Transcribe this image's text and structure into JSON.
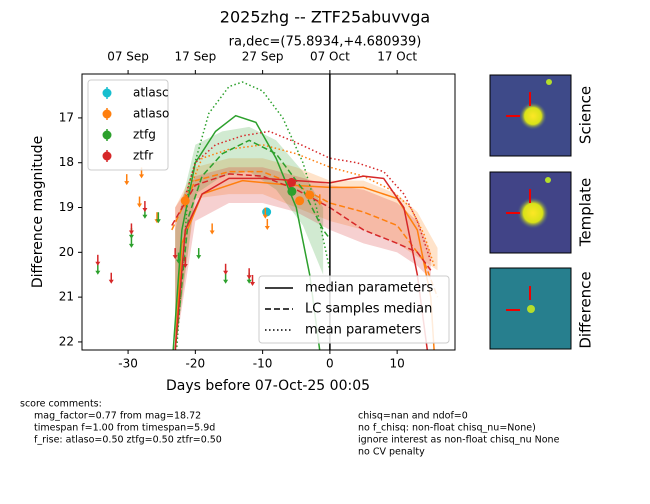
{
  "chart_data": {
    "type": "lightcurve",
    "title": "2025zhg -- ZTF25abuvvga",
    "subtitle": "ra,dec=(75.8934,+4.680939)",
    "xlabel": "Days before 07-Oct-25 00:05",
    "ylabel": "Difference magnitude",
    "xlim": [
      -36.85,
      18.6
    ],
    "ylim": [
      22.18,
      16.02
    ],
    "xticks": [
      -30,
      -20,
      -10,
      0,
      10
    ],
    "yticks": [
      17,
      18,
      19,
      20,
      21,
      22
    ],
    "x2ticks": [
      {
        "value": -30,
        "label": "07 Sep"
      },
      {
        "value": -20,
        "label": "17 Sep"
      },
      {
        "value": -10,
        "label": "27 Sep"
      },
      {
        "value": 0,
        "label": "07 Oct"
      },
      {
        "value": 10,
        "label": "17 Oct"
      }
    ],
    "vline": 0,
    "fit_legend": [
      "median parameters",
      "LC samples median",
      "mean parameters"
    ],
    "fit_dashes": [
      "solid",
      "dashed",
      "dotted"
    ],
    "series": [
      {
        "name": "atlasc",
        "color": "#17becf",
        "x": [
          -9.4
        ],
        "values": [
          19.1
        ],
        "errors": [
          0.1
        ],
        "limits_x": [],
        "limits_values": []
      },
      {
        "name": "atlaso",
        "color": "#ff7f0e",
        "x": [
          -21.5,
          -4.5,
          -3
        ],
        "values": [
          18.85,
          18.85,
          18.72
        ],
        "errors": [
          0.15,
          0.08,
          0.08
        ],
        "limits_x": [
          -30.2,
          -28,
          -28.3,
          -25.7,
          -17.5,
          -9.6,
          -9.3,
          -1.5
        ],
        "limits_values": [
          18.3,
          18.15,
          18.8,
          19.15,
          19.4,
          19.05,
          19.3,
          18.75
        ],
        "band": {
          "x": [
            -23,
            -20,
            -15,
            -10,
            -5,
            0,
            5,
            10,
            13,
            16
          ],
          "low": [
            19.0,
            18.1,
            17.9,
            17.9,
            18.1,
            18.4,
            18.4,
            18.7,
            19.1,
            19.9
          ],
          "high": [
            22.2,
            18.8,
            18.7,
            18.7,
            19.0,
            19.3,
            19.5,
            19.8,
            20.1,
            20.4
          ]
        },
        "fits": [
          {
            "x": [
              -23,
              -22,
              -19,
              -13,
              -6,
              0,
              5,
              10,
              13,
              15,
              15.5
            ],
            "values": [
              22.2,
              19.8,
              18.7,
              18.4,
              18.5,
              18.55,
              18.55,
              18.8,
              19.5,
              21.0,
              22.2
            ]
          },
          {
            "x": [
              -23.5,
              -20,
              -15,
              -10,
              -5,
              0,
              5,
              10,
              14,
              16
            ],
            "values": [
              19.5,
              18.4,
              18.2,
              18.2,
              18.5,
              18.9,
              19.1,
              19.4,
              20.2,
              21.0
            ]
          },
          {
            "x": [
              -22,
              -19,
              -15,
              -10,
              -5,
              0,
              5,
              9,
              12,
              14,
              15.5
            ],
            "values": [
              19.0,
              17.9,
              17.7,
              17.6,
              17.8,
              18.1,
              18.3,
              18.6,
              19.0,
              19.6,
              20.3
            ]
          }
        ]
      },
      {
        "name": "ztfg",
        "color": "#2ca02c",
        "x": [
          -5.65
        ],
        "values": [
          18.64
        ],
        "errors": [
          0.06
        ],
        "limits_x": [
          -34.5,
          -29.5,
          -29.5,
          -27.5,
          -25.5,
          -22.5,
          -19.5,
          -15.5,
          -12
        ],
        "limits_values": [
          20.3,
          19.5,
          19.7,
          19.05,
          19.15,
          20.05,
          19.95,
          20.5,
          20.5
        ],
        "band": {
          "x": [
            -23,
            -20,
            -16,
            -12,
            -8,
            -4,
            -1
          ],
          "low": [
            19.5,
            17.6,
            17.3,
            17.2,
            17.5,
            18.2,
            19.0
          ],
          "high": [
            22.2,
            18.7,
            18.3,
            18.2,
            18.6,
            19.4,
            20.5
          ]
        },
        "fits": [
          {
            "x": [
              -23.3,
              -22,
              -20,
              -17,
              -14,
              -11,
              -8,
              -5,
              -3,
              -1.5
            ],
            "values": [
              22.2,
              19.5,
              18.0,
              17.3,
              16.95,
              17.1,
              17.9,
              19.0,
              20.5,
              22.2
            ]
          },
          {
            "x": [
              -23,
              -21,
              -19,
              -16,
              -12,
              -8,
              -4,
              -1,
              0
            ],
            "values": [
              22.2,
              19.2,
              18.3,
              17.8,
              17.5,
              17.8,
              18.6,
              19.5,
              19.7
            ]
          },
          {
            "x": [
              -22.8,
              -21,
              -18,
              -15,
              -13,
              -10,
              -7,
              -4,
              -2,
              0
            ],
            "values": [
              22.2,
              18.5,
              16.9,
              16.3,
              16.2,
              16.4,
              17.0,
              18.0,
              19.0,
              20.4
            ]
          }
        ]
      },
      {
        "name": "ztfr",
        "color": "#d62728",
        "x": [
          -5.7
        ],
        "values": [
          18.44
        ],
        "errors": [
          0.05
        ],
        "limits_x": [
          -34.5,
          -32.5,
          -29.5,
          -27.5,
          -23,
          -21.5,
          -15.5,
          -12,
          -11.5
        ],
        "limits_values": [
          20.1,
          20.5,
          19.4,
          18.9,
          19.95,
          20.15,
          20.3,
          20.4,
          20.55
        ],
        "band": {
          "x": [
            -23,
            -20,
            -15,
            -10,
            -5,
            0,
            5,
            10,
            13,
            15
          ],
          "low": [
            19.0,
            18.3,
            18.1,
            18.1,
            18.3,
            18.5,
            18.6,
            18.9,
            19.3,
            20.0
          ],
          "high": [
            22.2,
            19.3,
            18.9,
            18.9,
            19.1,
            19.5,
            19.8,
            20.0,
            20.3,
            20.6
          ]
        },
        "fits": [
          {
            "x": [
              -23,
              -21.5,
              -19,
              -15,
              -10,
              -5,
              0,
              5,
              8,
              11,
              13,
              14.5
            ],
            "values": [
              22.2,
              19.5,
              18.7,
              18.35,
              18.35,
              18.4,
              18.45,
              18.3,
              18.35,
              19.0,
              20.5,
              22.2
            ]
          },
          {
            "x": [
              -23.5,
              -20,
              -15,
              -10,
              -5,
              0,
              5,
              10,
              13,
              15
            ],
            "values": [
              19.4,
              18.5,
              18.25,
              18.3,
              18.6,
              19.0,
              19.5,
              19.8,
              20.0,
              20.4
            ]
          },
          {
            "x": [
              -22,
              -20,
              -17,
              -13,
              -9,
              -5,
              0,
              4,
              8,
              11,
              13,
              15
            ],
            "values": [
              19.0,
              18.0,
              17.6,
              17.4,
              17.3,
              17.55,
              17.9,
              18.0,
              18.2,
              18.7,
              19.3,
              20.2
            ]
          }
        ]
      }
    ]
  },
  "thumbnails": [
    "Science",
    "Template",
    "Difference"
  ],
  "score_comments": {
    "title": "score comments:",
    "left": [
      "mag_factor=0.77 from mag=18.72",
      "timespan f=1.00 from timespan=5.9d",
      "f_rise: atlaso=0.50 ztfg=0.50 ztfr=0.50"
    ],
    "right": [
      "chisq=nan and ndof=0",
      "no f_chisq: non-float chisq_nu=None)",
      "ignore interest as non-float chisq_nu None",
      "no CV penalty"
    ]
  }
}
